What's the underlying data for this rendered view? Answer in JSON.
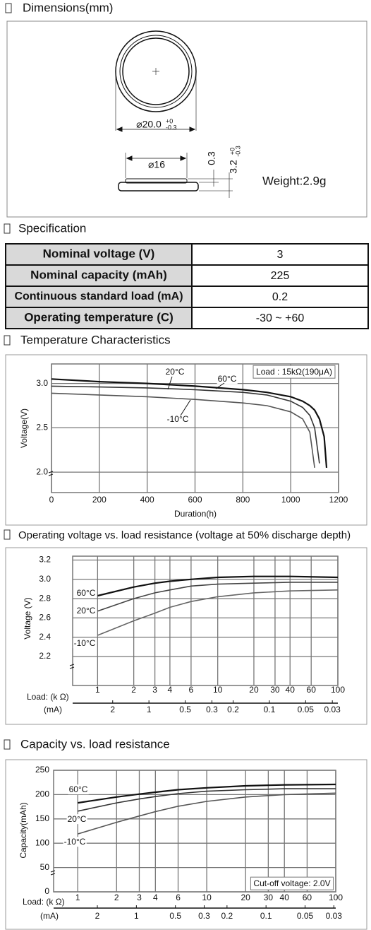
{
  "headings": [
    "Dimensions(mm)",
    "Specification",
    "Temperature Characteristics",
    "Operating voltage vs. load resistance (voltage at 50% discharge depth)",
    "Capacity vs. load resistance"
  ],
  "dimensions": {
    "outer_diameter": "⌀20.0",
    "outer_tolerance_upper": "+0",
    "outer_tolerance_lower": "-0.3",
    "inner_diameter": "⌀16",
    "lip_height": "0.3",
    "height": "3.2",
    "height_tolerance_upper": "+0",
    "height_tolerance_lower": "-0.3",
    "weight": "Weight:2.9g"
  },
  "specification": {
    "rows": [
      [
        "Nominal voltage (V)",
        "3"
      ],
      [
        "Nominal capacity (mAh)",
        "225"
      ],
      [
        "Continuous standard load (mA)",
        "0.2"
      ],
      [
        "Operating temperature (C)",
        "-30 ~ +60"
      ]
    ]
  },
  "chart_data": [
    {
      "type": "line",
      "xlabel": "Duration(h)",
      "ylabel": "Voltage(V)",
      "annotation": "Load : 15kΩ(190μA)",
      "x": [
        0,
        200,
        400,
        600,
        800,
        900,
        1000,
        1050,
        1080,
        1100,
        1120,
        1140,
        1150
      ],
      "series": [
        {
          "name": "60°C",
          "color": "#111111",
          "values": [
            3.05,
            3.02,
            3.0,
            2.97,
            2.93,
            2.9,
            2.85,
            2.8,
            2.75,
            2.7,
            2.6,
            2.4,
            2.05
          ]
        },
        {
          "name": "20°C",
          "color": "#333333",
          "values": [
            2.97,
            2.96,
            2.95,
            2.93,
            2.9,
            2.87,
            2.8,
            2.73,
            2.64,
            2.5,
            2.1,
            null,
            null
          ]
        },
        {
          "name": "-10°C",
          "color": "#555555",
          "values": [
            2.89,
            2.87,
            2.85,
            2.82,
            2.78,
            2.75,
            2.68,
            2.6,
            2.45,
            2.05,
            null,
            null,
            null
          ]
        }
      ],
      "xlim": [
        0,
        1200
      ],
      "xticks": [
        0,
        200,
        400,
        600,
        800,
        1000,
        1200
      ],
      "ylim": [
        1.77,
        3.22
      ],
      "yticks": [
        {
          "value": 2,
          "label": "2.0"
        },
        2.5,
        {
          "value": 3,
          "label": "3.0"
        }
      ],
      "grid": true
    },
    {
      "type": "line",
      "xlabel": "Load: (k Ω)",
      "x2label": "(mA)",
      "ylabel": "Voltage (V)",
      "xlog": true,
      "x2log": true,
      "x": [
        1,
        2,
        3,
        4,
        6,
        10,
        20,
        40,
        100
      ],
      "series": [
        {
          "name": "60°C",
          "color": "#111111",
          "values": [
            2.83,
            2.92,
            2.96,
            2.98,
            3.0,
            3.02,
            3.03,
            3.03,
            3.02
          ]
        },
        {
          "name": "20°C",
          "color": "#444444",
          "values": [
            2.67,
            2.8,
            2.86,
            2.89,
            2.93,
            2.95,
            2.96,
            2.97,
            2.97
          ]
        },
        {
          "name": "-10°C",
          "color": "#666666",
          "values": [
            2.42,
            2.57,
            2.65,
            2.71,
            2.77,
            2.82,
            2.86,
            2.88,
            2.89
          ]
        }
      ],
      "xlim": [
        0.62,
        100
      ],
      "xticks": [
        1,
        2,
        3,
        4,
        6,
        10,
        20,
        30,
        40,
        60,
        100
      ],
      "x2lim": [
        4.3,
        0.027
      ],
      "x2ticks": [
        2,
        1,
        0.5,
        0.3,
        0.2,
        0.1,
        0.05,
        0.03
      ],
      "ylim": [
        1.9,
        3.24
      ],
      "yticks": [
        3.2,
        {
          "value": 3,
          "label": "3.0"
        },
        2.8,
        2.6,
        2.4,
        2.2
      ],
      "grid": true
    },
    {
      "type": "line",
      "xlabel": "Load: (k Ω)",
      "x2label": "(mA)",
      "ylabel": "Capacity(mAh)",
      "annotation": "Cut-off voltage: 2.0V",
      "xlog": true,
      "x2log": true,
      "x": [
        1,
        2,
        3,
        4,
        6,
        10,
        20,
        40,
        100
      ],
      "series": [
        {
          "name": "60°C",
          "color": "#111111",
          "values": [
            183,
            195,
            201,
            205,
            210,
            214,
            218,
            220,
            221
          ]
        },
        {
          "name": "20°C",
          "color": "#333333",
          "values": [
            166,
            183,
            191,
            196,
            202,
            207,
            210,
            212,
            212
          ]
        },
        {
          "name": "-10°C",
          "color": "#555555",
          "values": [
            119,
            143,
            156,
            165,
            176,
            186,
            195,
            200,
            203
          ]
        }
      ],
      "xlim": [
        0.65,
        100
      ],
      "xticks": [
        1,
        2,
        3,
        4,
        6,
        10,
        20,
        30,
        40,
        60,
        100
      ],
      "x2lim": [
        4.35,
        0.029
      ],
      "x2ticks": [
        2,
        1,
        0.5,
        0.3,
        0.2,
        0.1,
        0.05,
        0.03
      ],
      "ylim": [
        0,
        250
      ],
      "yticks": [
        0,
        50,
        100,
        150,
        200,
        250
      ],
      "grid": true
    }
  ]
}
